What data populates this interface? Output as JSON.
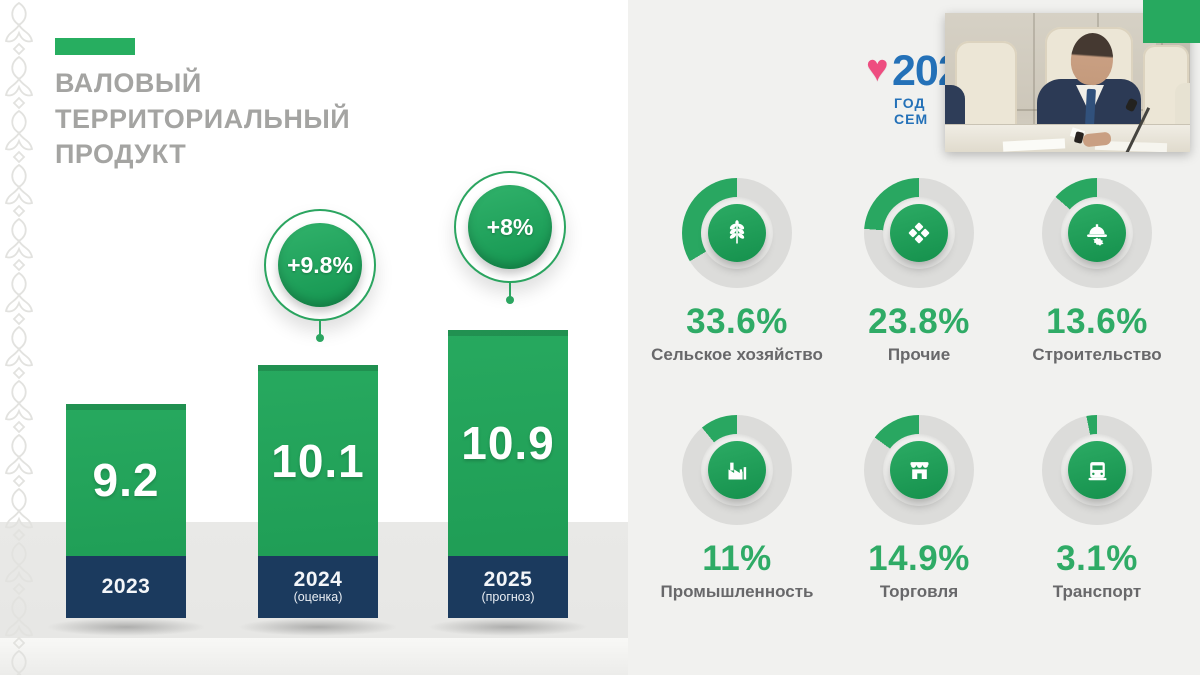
{
  "title": {
    "lines": [
      "ВАЛОВЫЙ",
      "ТЕРРИТОРИАЛЬНЫЙ",
      "ПРОДУКТ"
    ]
  },
  "colors": {
    "accent_green": "#27ae60",
    "bar_green": "#1d9a53",
    "bar_base_navy": "#1b3a5e",
    "pct_green": "#2fab66",
    "donut_track": "#dcdcda",
    "logo_blue": "#2471b8",
    "logo_heart_pink": "#ee4d80"
  },
  "chart_data": [
    {
      "type": "bar",
      "title": "Валовый территориальный продукт",
      "categories": [
        "2023",
        "2024",
        "2025"
      ],
      "category_notes": [
        "",
        "(оценка)",
        "(прогноз)"
      ],
      "values": [
        9.2,
        10.1,
        10.9
      ],
      "data_labels": [
        "9.2",
        "10.1",
        "10.9"
      ],
      "growth_annotations": [
        "",
        "+9.8%",
        "+8%"
      ],
      "bar_color": "#1d9a53",
      "base_color": "#1b3a5e"
    },
    {
      "type": "pie",
      "categories": [
        "Сельское хозяйство",
        "Прочие",
        "Строительство",
        "Промышленность",
        "Торговля",
        "Транспорт"
      ],
      "values": [
        33.6,
        23.8,
        13.6,
        11,
        14.9,
        3.1
      ],
      "value_labels": [
        "33.6%",
        "23.8%",
        "13.6%",
        "11%",
        "14.9%",
        "3.1%"
      ],
      "icons": [
        "wheat-icon",
        "tiles-icon",
        "helmet-gear-icon",
        "factory-icon",
        "shop-icon",
        "truck-icon"
      ],
      "ring_color": "#29a761",
      "track_color": "#dcdcda",
      "arc_direction": "counterclockwise-from-top"
    }
  ],
  "logo": {
    "number": "202",
    "caption": "ГОД СЕМ"
  }
}
